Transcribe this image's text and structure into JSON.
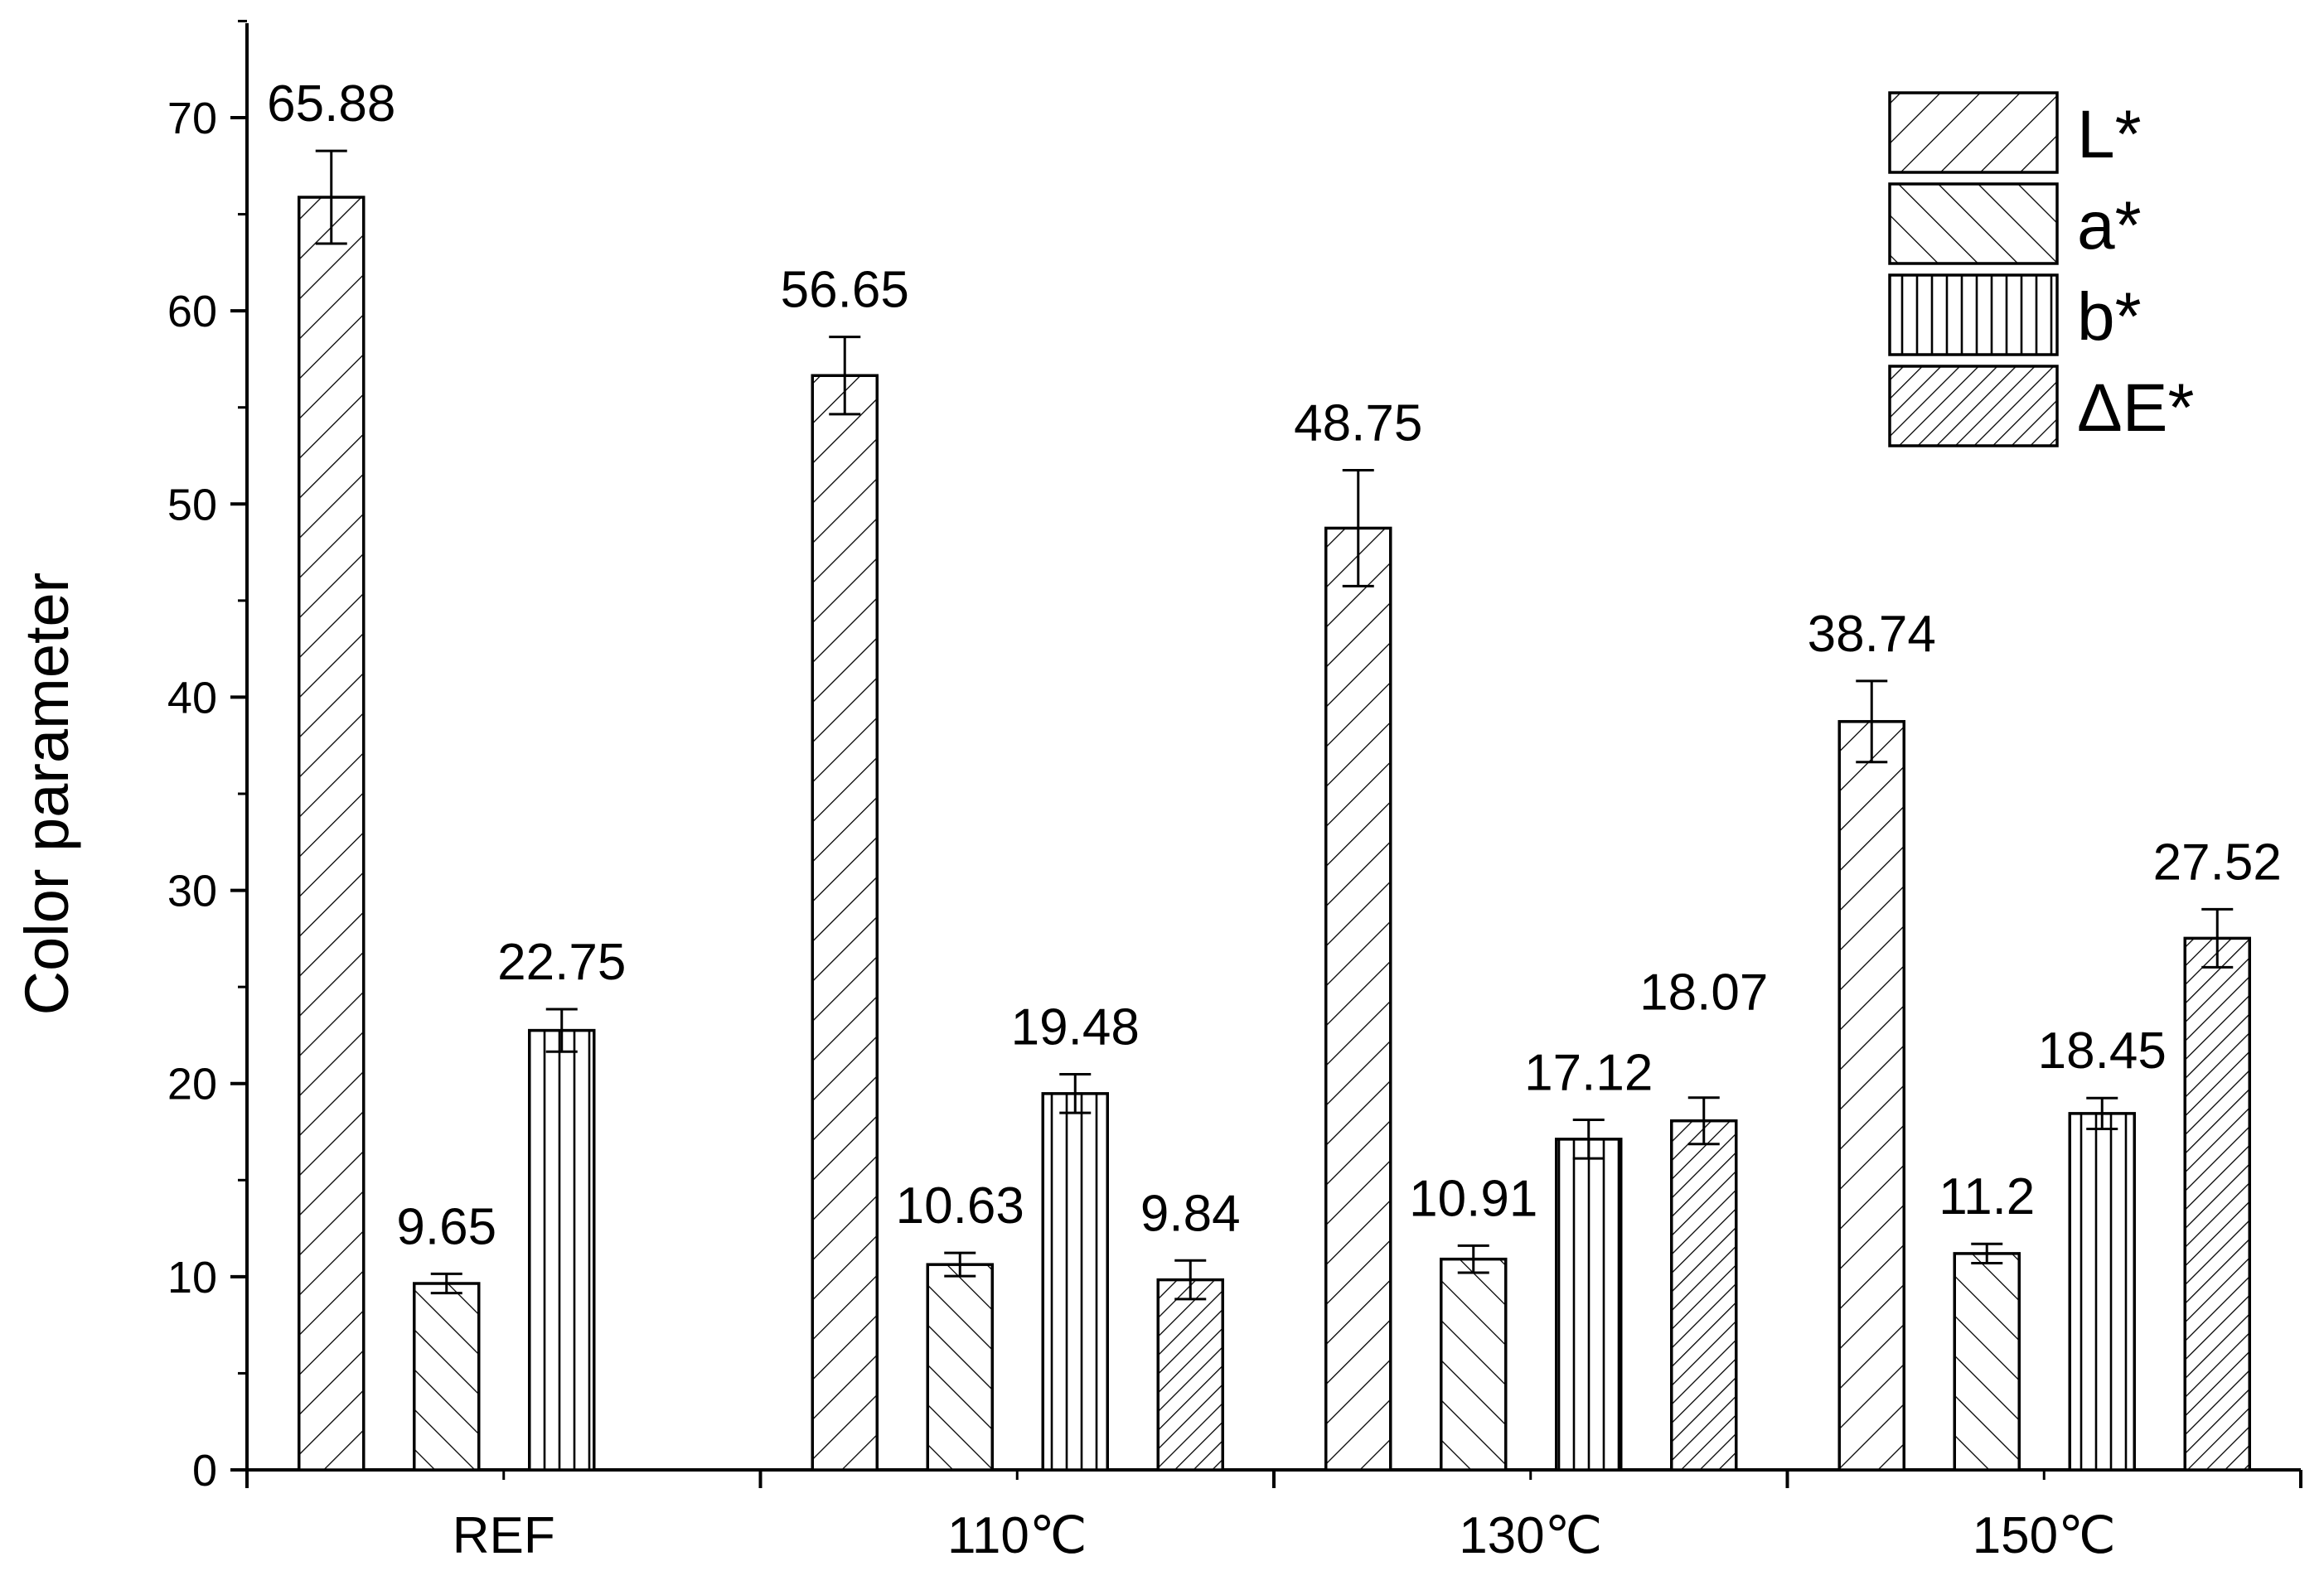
{
  "chart_data": {
    "type": "bar",
    "title": "",
    "xlabel": "",
    "ylabel": "Color parameter",
    "ylim": [
      0,
      75
    ],
    "yticks": [
      0,
      10,
      20,
      30,
      40,
      50,
      60,
      70
    ],
    "grid": false,
    "legend": {
      "placement": "top-right"
    },
    "categories": [
      "REF",
      "110℃",
      "130℃",
      "150℃"
    ],
    "series": [
      {
        "name": "L*",
        "hatch": "diagonal-forward",
        "values": [
          65.88,
          56.65,
          48.75,
          38.74
        ],
        "errors": [
          2.4,
          2.0,
          3.0,
          2.1
        ],
        "labels": [
          "65.88",
          "56.65",
          "48.75",
          "38.74"
        ]
      },
      {
        "name": "a*",
        "hatch": "diagonal-backward",
        "values": [
          9.65,
          10.63,
          10.91,
          11.2
        ],
        "errors": [
          0.5,
          0.6,
          0.7,
          0.5
        ],
        "labels": [
          "9.65",
          "10.63",
          "10.91",
          "11.2"
        ]
      },
      {
        "name": "b*",
        "hatch": "vertical",
        "values": [
          22.75,
          19.48,
          17.12,
          18.45
        ],
        "errors": [
          1.1,
          1.0,
          1.0,
          0.8
        ],
        "labels": [
          "22.75",
          "19.48",
          "17.12",
          "18.45"
        ]
      },
      {
        "name": "ΔE*",
        "hatch": "diagonal-dense",
        "values": [
          null,
          9.84,
          18.07,
          27.52
        ],
        "errors": [
          null,
          1.0,
          1.2,
          1.5
        ],
        "labels": [
          "",
          "9.84",
          "18.07",
          "27.52"
        ]
      }
    ],
    "colors": {
      "bar_fill": "#ffffff",
      "stroke": "#000000"
    }
  }
}
